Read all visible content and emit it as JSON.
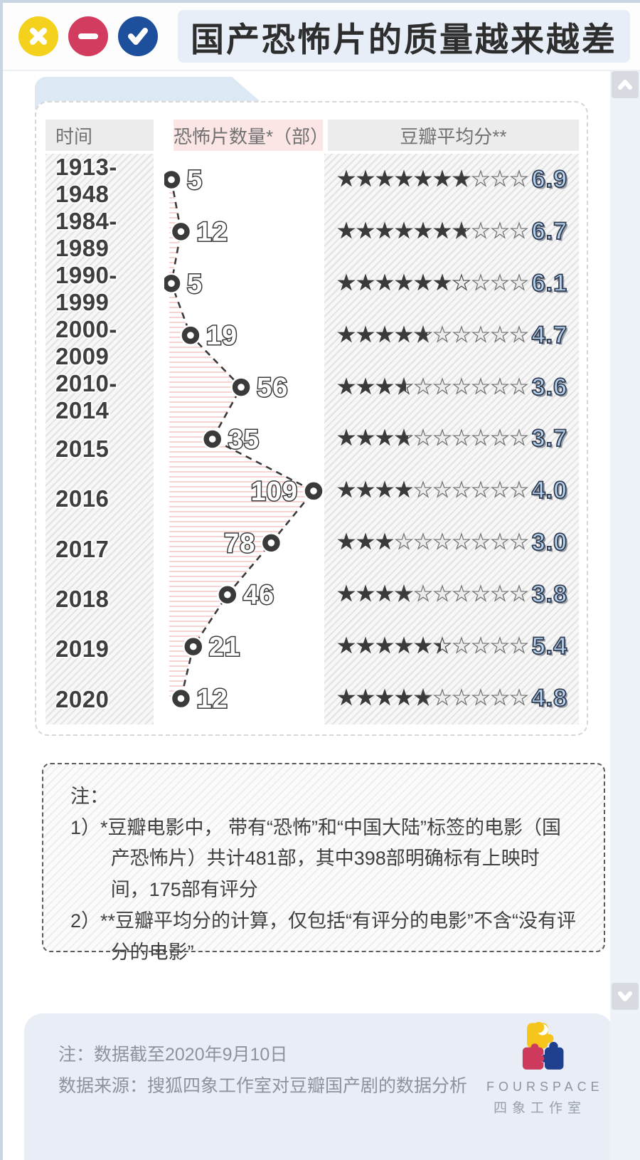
{
  "window": {
    "title": "国产恐怖片的质量越来越差",
    "buttons": {
      "close": "close",
      "minimize": "minimize",
      "confirm": "confirm"
    }
  },
  "table": {
    "headers": {
      "time": "时间",
      "count": "恐怖片数量*（部）",
      "score": "豆瓣平均分**"
    },
    "rows": [
      {
        "period": "1913-1948",
        "count": 5,
        "score": 6.9
      },
      {
        "period": "1984-1989",
        "count": 12,
        "score": 6.7
      },
      {
        "period": "1990-1999",
        "count": 5,
        "score": 6.1
      },
      {
        "period": "2000-2009",
        "count": 19,
        "score": 4.7
      },
      {
        "period": "2010-2014",
        "count": 56,
        "score": 3.6
      },
      {
        "period": "2015",
        "count": 35,
        "score": 3.7
      },
      {
        "period": "2016",
        "count": 109,
        "score": 4.0
      },
      {
        "period": "2017",
        "count": 78,
        "score": 3.0
      },
      {
        "period": "2018",
        "count": 46,
        "score": 3.8
      },
      {
        "period": "2019",
        "count": 21,
        "score": 5.4
      },
      {
        "period": "2020",
        "count": 12,
        "score": 4.8
      }
    ]
  },
  "chart_data": {
    "type": "table",
    "title": "国产恐怖片的质量越来越差",
    "categories": [
      "1913-1948",
      "1984-1989",
      "1990-1999",
      "2000-2009",
      "2010-2014",
      "2015",
      "2016",
      "2017",
      "2018",
      "2019",
      "2020"
    ],
    "series": [
      {
        "name": "恐怖片数量（部）",
        "type": "dot-line",
        "values": [
          5,
          12,
          5,
          19,
          56,
          35,
          109,
          78,
          46,
          21,
          12
        ]
      },
      {
        "name": "豆瓣平均分",
        "type": "stars",
        "scale_max": 10,
        "values": [
          6.9,
          6.7,
          6.1,
          4.7,
          3.6,
          3.7,
          4.0,
          3.0,
          3.8,
          5.4,
          4.8
        ]
      }
    ],
    "layout": {
      "count_range": [
        5,
        109
      ],
      "stars_per_row": 10,
      "legend": "none",
      "grid": "off"
    }
  },
  "notes": {
    "title": "注：",
    "items": [
      "1）*豆瓣电影中， 带有“恐怖”和“中国大陆”标签的电影（国产恐怖片）共计481部，其中398部明确标有上映时间，175部有评分",
      "2）**豆瓣平均分的计算，仅包括“有评分的电影”不含“没有评分的电影”"
    ]
  },
  "footer": {
    "note": "注：数据截至2020年9月10日",
    "source": "数据来源：搜狐四象工作室对豆瓣国产剧的数据分析",
    "brand": "FOURSPACE",
    "brand_cn": "四象工作室"
  },
  "colors": {
    "accent_yellow": "#f4d11d",
    "accent_red": "#d23c5f",
    "accent_blue": "#1e4f9c",
    "score_fill": "#b9d4ef",
    "score_outline": "#303c52",
    "ink": "#3a3a3a",
    "pink_stripe": "#f7d4d2",
    "panel_blue": "#e9eef6"
  }
}
